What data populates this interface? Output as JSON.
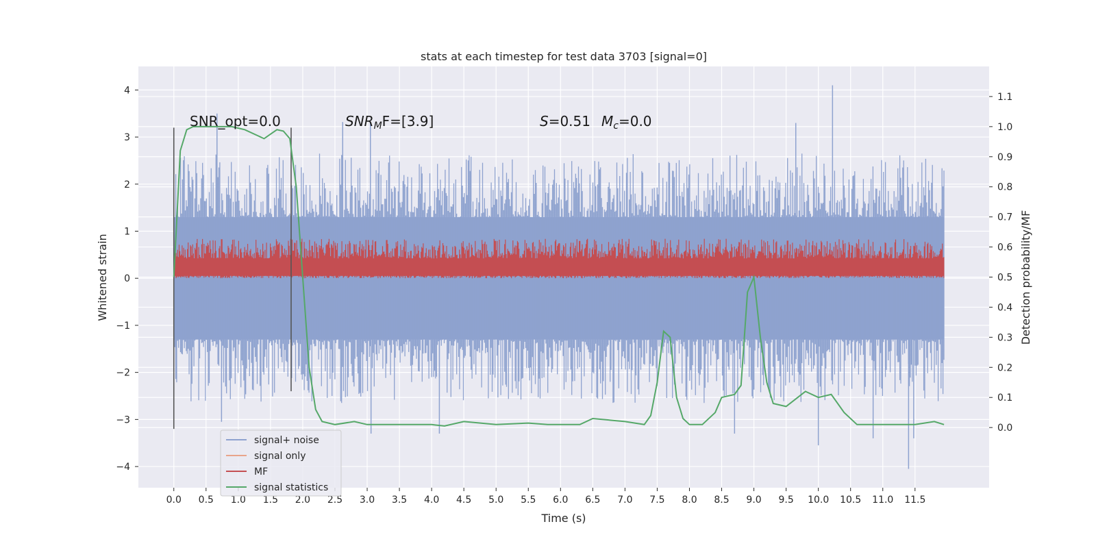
{
  "chart_data": {
    "type": "line",
    "title": "stats at each timestep for test data 3703 [signal=0]",
    "xlabel": "Time (s)",
    "ylabel": "Whitened strain",
    "ylabel_right": "Detection probability/MF",
    "xlim": [
      -0.55,
      12.65
    ],
    "ylim": [
      -4.45,
      4.5
    ],
    "ylim_right": [
      -0.2,
      1.2
    ],
    "x_ticks": [
      0.0,
      0.5,
      1.0,
      1.5,
      2.0,
      2.5,
      3.0,
      3.5,
      4.0,
      4.5,
      5.0,
      5.5,
      6.0,
      6.5,
      7.0,
      7.5,
      8.0,
      8.5,
      9.0,
      9.5,
      10.0,
      10.5,
      11.0,
      11.5
    ],
    "x_tick_labels": [
      "0.0",
      "0.5",
      "1.0",
      "1.5",
      "2.0",
      "2.5",
      "3.0",
      "3.5",
      "4.0",
      "4.5",
      "5.0",
      "5.5",
      "6.0",
      "6.5",
      "7.0",
      "7.5",
      "8.0",
      "8.5",
      "9.0",
      "9.5",
      "10.0",
      "10.5",
      "11.0",
      "11.5"
    ],
    "y_ticks": [
      4,
      3,
      2,
      1,
      0,
      -1,
      -2,
      -3,
      -4
    ],
    "y_tick_labels": [
      "4",
      "3",
      "2",
      "1",
      "0",
      "−1",
      "−2",
      "−3",
      "−4"
    ],
    "y_right_ticks": [
      1.1,
      1.0,
      0.9,
      0.8,
      0.7,
      0.6,
      0.5,
      0.4,
      0.3,
      0.2,
      0.1,
      0.0
    ],
    "y_right_tick_labels": [
      "1.1",
      "1.0",
      "0.9",
      "0.8",
      "0.7",
      "0.6",
      "0.5",
      "0.4",
      "0.3",
      "0.2",
      "0.1",
      "0.0"
    ],
    "grid": true,
    "legend_position": "lower-left",
    "vertical_markers": [
      {
        "x": 0.0,
        "y_range": [
          -3.2,
          3.2
        ]
      },
      {
        "x": 1.82,
        "y_range": [
          -2.4,
          3.2
        ]
      }
    ],
    "series": [
      {
        "name": "signal+ noise",
        "axis": "left",
        "color": "#8ea2cf",
        "x_range": [
          0.0,
          11.95
        ],
        "band": [
          -1.3,
          1.3
        ],
        "extremes": [
          {
            "x": 0.67,
            "y": 3.5
          },
          {
            "x": 0.74,
            "y": -3.05
          },
          {
            "x": 2.62,
            "y": 3.32
          },
          {
            "x": 3.05,
            "y": 3.3
          },
          {
            "x": 3.06,
            "y": -3.3
          },
          {
            "x": 4.12,
            "y": -3.3
          },
          {
            "x": 8.7,
            "y": -3.3
          },
          {
            "x": 9.65,
            "y": 3.3
          },
          {
            "x": 10.0,
            "y": -3.55
          },
          {
            "x": 10.22,
            "y": 4.1
          },
          {
            "x": 10.85,
            "y": -3.4
          },
          {
            "x": 11.4,
            "y": -4.05
          },
          {
            "x": 11.48,
            "y": -3.4
          }
        ]
      },
      {
        "name": "signal only",
        "axis": "left",
        "color": "#e8a48a",
        "values": []
      },
      {
        "name": "MF",
        "axis": "left",
        "color": "#c44e52",
        "x_range": [
          0.0,
          11.95
        ],
        "band": [
          0.0,
          0.6
        ]
      },
      {
        "name": "signal statistics",
        "axis": "right",
        "color": "#55a868",
        "x": [
          0.0,
          0.1,
          0.2,
          0.3,
          0.5,
          0.9,
          1.1,
          1.3,
          1.4,
          1.5,
          1.6,
          1.7,
          1.8,
          1.9,
          2.0,
          2.1,
          2.2,
          2.3,
          2.5,
          2.8,
          3.0,
          3.5,
          4.0,
          4.2,
          4.5,
          5.0,
          5.5,
          5.8,
          6.0,
          6.3,
          6.5,
          7.0,
          7.3,
          7.4,
          7.5,
          7.6,
          7.7,
          7.8,
          7.9,
          8.0,
          8.2,
          8.4,
          8.5,
          8.7,
          8.8,
          8.9,
          9.0,
          9.1,
          9.2,
          9.3,
          9.5,
          9.8,
          10.0,
          10.2,
          10.4,
          10.6,
          11.0,
          11.5,
          11.8,
          11.95
        ],
        "values": [
          0.5,
          0.92,
          0.99,
          1.0,
          1.0,
          1.0,
          0.99,
          0.97,
          0.96,
          0.975,
          0.99,
          0.985,
          0.96,
          0.8,
          0.5,
          0.2,
          0.06,
          0.02,
          0.01,
          0.02,
          0.01,
          0.01,
          0.01,
          0.005,
          0.02,
          0.01,
          0.015,
          0.01,
          0.01,
          0.01,
          0.03,
          0.02,
          0.01,
          0.04,
          0.15,
          0.32,
          0.3,
          0.1,
          0.03,
          0.01,
          0.01,
          0.05,
          0.1,
          0.11,
          0.14,
          0.45,
          0.5,
          0.3,
          0.15,
          0.08,
          0.07,
          0.12,
          0.1,
          0.11,
          0.05,
          0.01,
          0.01,
          0.01,
          0.02,
          0.01
        ]
      }
    ],
    "annotations": [
      {
        "id": "snr-opt",
        "text": "SNR_opt=0.0",
        "x": 0.2
      },
      {
        "id": "snr-mf",
        "prefix": "SNR",
        "sub": "M",
        "suffix": "F=[3.9]",
        "x": 2.6
      },
      {
        "id": "stat",
        "s_label": "S",
        "s_value": "=0.51",
        "mc_label": "M",
        "mc_sub": "c",
        "mc_value": "=0.0",
        "x": 5.6
      }
    ]
  }
}
